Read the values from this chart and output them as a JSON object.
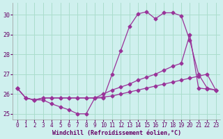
{
  "xlabel": "Windchill (Refroidissement éolien,°C)",
  "ylabel": "",
  "background_color": "#cff0ee",
  "grid_color": "#aaddcc",
  "line_color": "#993399",
  "xlim": [
    -0.5,
    23.5
  ],
  "ylim": [
    24.7,
    30.6
  ],
  "yticks": [
    25,
    26,
    27,
    28,
    29,
    30
  ],
  "xticks": [
    0,
    1,
    2,
    3,
    4,
    5,
    6,
    7,
    8,
    9,
    10,
    11,
    12,
    13,
    14,
    15,
    16,
    17,
    18,
    19,
    20,
    21,
    22,
    23
  ],
  "line1_x": [
    0,
    1,
    2,
    3,
    4,
    5,
    6,
    7,
    8,
    9,
    10,
    11,
    12,
    13,
    14,
    15,
    16,
    17,
    18,
    19,
    20,
    21,
    22,
    23
  ],
  "line1_y": [
    26.3,
    25.8,
    25.7,
    25.7,
    25.5,
    25.35,
    25.2,
    25.0,
    25.0,
    25.8,
    25.8,
    27.0,
    28.2,
    29.4,
    30.05,
    30.15,
    29.8,
    30.1,
    30.1,
    29.95,
    28.7,
    27.0,
    26.3,
    26.2
  ],
  "line2_x": [
    0,
    1,
    2,
    3,
    4,
    5,
    6,
    7,
    8,
    9,
    10,
    11,
    12,
    13,
    14,
    15,
    16,
    17,
    18,
    19,
    20,
    21,
    22,
    23
  ],
  "line2_y": [
    26.3,
    25.8,
    25.7,
    25.8,
    25.8,
    25.8,
    25.8,
    25.8,
    25.8,
    25.8,
    25.85,
    25.9,
    26.0,
    26.1,
    26.2,
    26.3,
    26.4,
    26.5,
    26.6,
    26.7,
    26.8,
    26.9,
    27.0,
    26.2
  ],
  "line3_x": [
    0,
    1,
    2,
    3,
    4,
    5,
    6,
    7,
    8,
    9,
    10,
    11,
    12,
    13,
    14,
    15,
    16,
    17,
    18,
    19,
    20,
    21,
    22,
    23
  ],
  "line3_y": [
    26.3,
    25.8,
    25.7,
    25.8,
    25.8,
    25.8,
    25.8,
    25.8,
    25.8,
    25.8,
    26.0,
    26.2,
    26.35,
    26.5,
    26.7,
    26.85,
    27.0,
    27.2,
    27.4,
    27.55,
    29.0,
    26.3,
    26.25,
    26.2
  ]
}
